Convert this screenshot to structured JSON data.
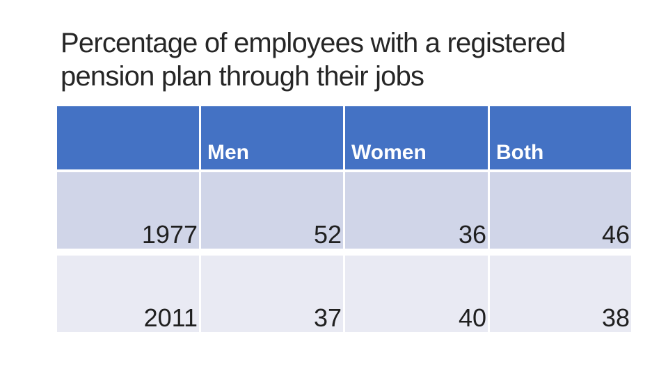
{
  "slide": {
    "title": "Percentage of employees with a registered pension plan through their jobs",
    "title_lines": [
      "Percentage of employees with a registered",
      "pension plan through their jobs"
    ]
  },
  "table": {
    "header": [
      "",
      "Men",
      "Women",
      "Both"
    ],
    "rows": [
      {
        "cells": [
          "1977",
          "52",
          "36",
          "46"
        ]
      },
      {
        "cells": [
          "2011",
          "37",
          "40",
          "38"
        ]
      }
    ]
  },
  "chart_data": {
    "type": "table",
    "title": "Percentage of employees with a registered pension plan through their jobs",
    "columns": [
      "",
      "Men",
      "Women",
      "Both"
    ],
    "categories": [
      "1977",
      "2011"
    ],
    "series": [
      {
        "name": "Men",
        "values": [
          52,
          37
        ]
      },
      {
        "name": "Women",
        "values": [
          36,
          40
        ]
      },
      {
        "name": "Both",
        "values": [
          46,
          38
        ]
      }
    ],
    "rows": [
      [
        "1977",
        52,
        36,
        46
      ],
      [
        "2011",
        37,
        40,
        38
      ]
    ]
  },
  "theme": {
    "header_bg": "#4472C4",
    "row_odd_bg": "#D0D5E8",
    "row_even_bg": "#E9EAF3",
    "header_text": "#FFFFFF",
    "body_text": "#1F1F1F",
    "title_color": "#262626",
    "background": "#FFFFFF"
  }
}
